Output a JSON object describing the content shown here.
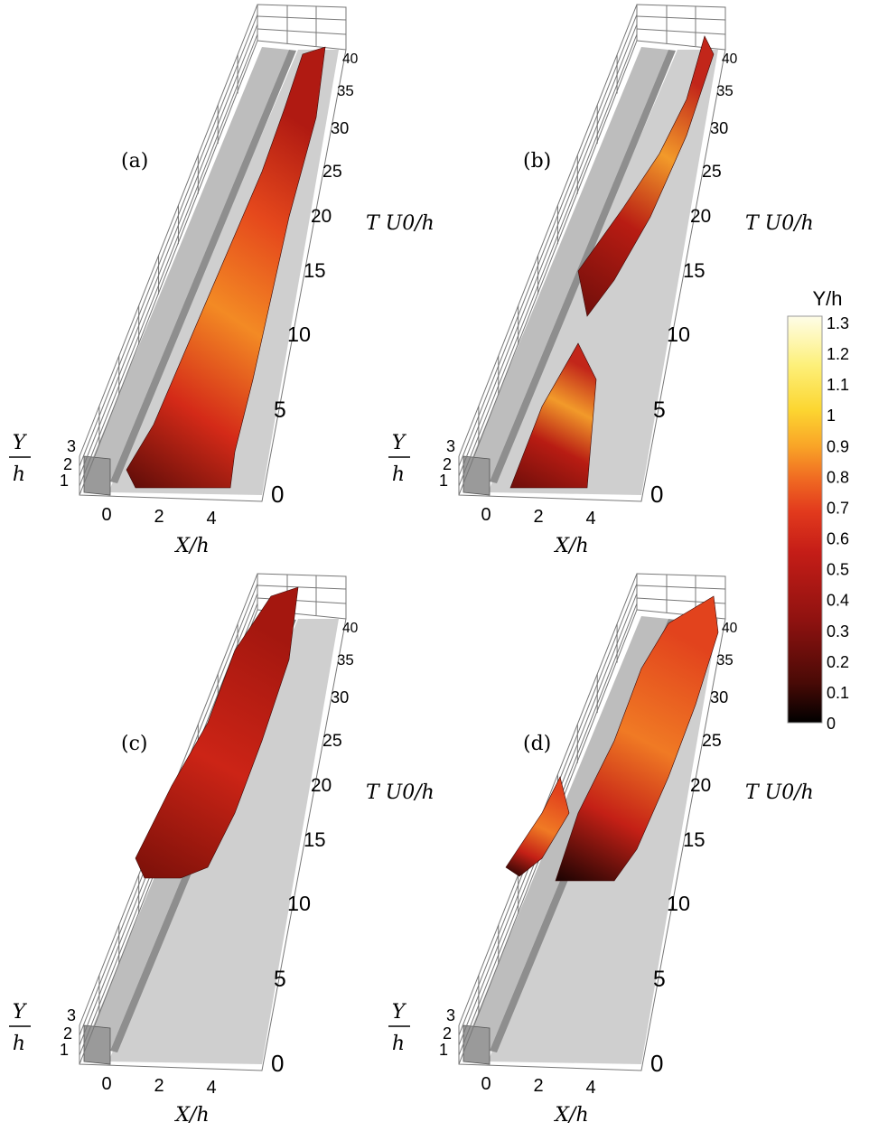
{
  "panels": [
    {
      "id": "a",
      "label": "(a)",
      "x_axis_label": "X/h",
      "x_ticks": [
        "0",
        "2",
        "4"
      ],
      "y_axis_label_num": "Y",
      "y_axis_label_den": "h",
      "y_ticks": [
        "1",
        "2",
        "3"
      ],
      "t_axis_label": "T U0/h",
      "t_ticks": [
        "0",
        "5",
        "10",
        "15",
        "20",
        "25",
        "30",
        "35",
        "40"
      ]
    },
    {
      "id": "b",
      "label": "(b)",
      "x_axis_label": "X/h",
      "x_ticks": [
        "0",
        "2",
        "4"
      ],
      "y_axis_label_num": "Y",
      "y_axis_label_den": "h",
      "y_ticks": [
        "1",
        "2",
        "3"
      ],
      "t_axis_label": "T U0/h",
      "t_ticks": [
        "0",
        "5",
        "10",
        "15",
        "20",
        "25",
        "30",
        "35",
        "40"
      ]
    },
    {
      "id": "c",
      "label": "(c)",
      "x_axis_label": "X/h",
      "x_ticks": [
        "0",
        "2",
        "4"
      ],
      "y_axis_label_num": "Y",
      "y_axis_label_den": "h",
      "y_ticks": [
        "1",
        "2",
        "3"
      ],
      "t_axis_label": "T U0/h",
      "t_ticks": [
        "0",
        "5",
        "10",
        "15",
        "20",
        "25",
        "30",
        "35",
        "40"
      ]
    },
    {
      "id": "d",
      "label": "(d)",
      "x_axis_label": "X/h",
      "x_ticks": [
        "0",
        "2",
        "4"
      ],
      "y_axis_label_num": "Y",
      "y_axis_label_den": "h",
      "y_ticks": [
        "1",
        "2",
        "3"
      ],
      "t_axis_label": "T U0/h",
      "t_ticks": [
        "0",
        "5",
        "10",
        "15",
        "20",
        "25",
        "30",
        "35",
        "40"
      ]
    }
  ],
  "colorbar": {
    "title": "Y/h",
    "ticks": [
      "1.3",
      "1.2",
      "1.1",
      "1",
      "0.9",
      "0.8",
      "0.7",
      "0.6",
      "0.5",
      "0.4",
      "0.3",
      "0.2",
      "0.1",
      "0"
    ],
    "colors": [
      "#000000",
      "#4a0a06",
      "#8e1210",
      "#c51d17",
      "#e23a1d",
      "#f06a22",
      "#f9a427",
      "#fcd631",
      "#fdf07a",
      "#fefde8"
    ]
  },
  "colors": {
    "floor": "#cfcfcf",
    "wall": "#8e8e8e",
    "frame": "#777777"
  }
}
